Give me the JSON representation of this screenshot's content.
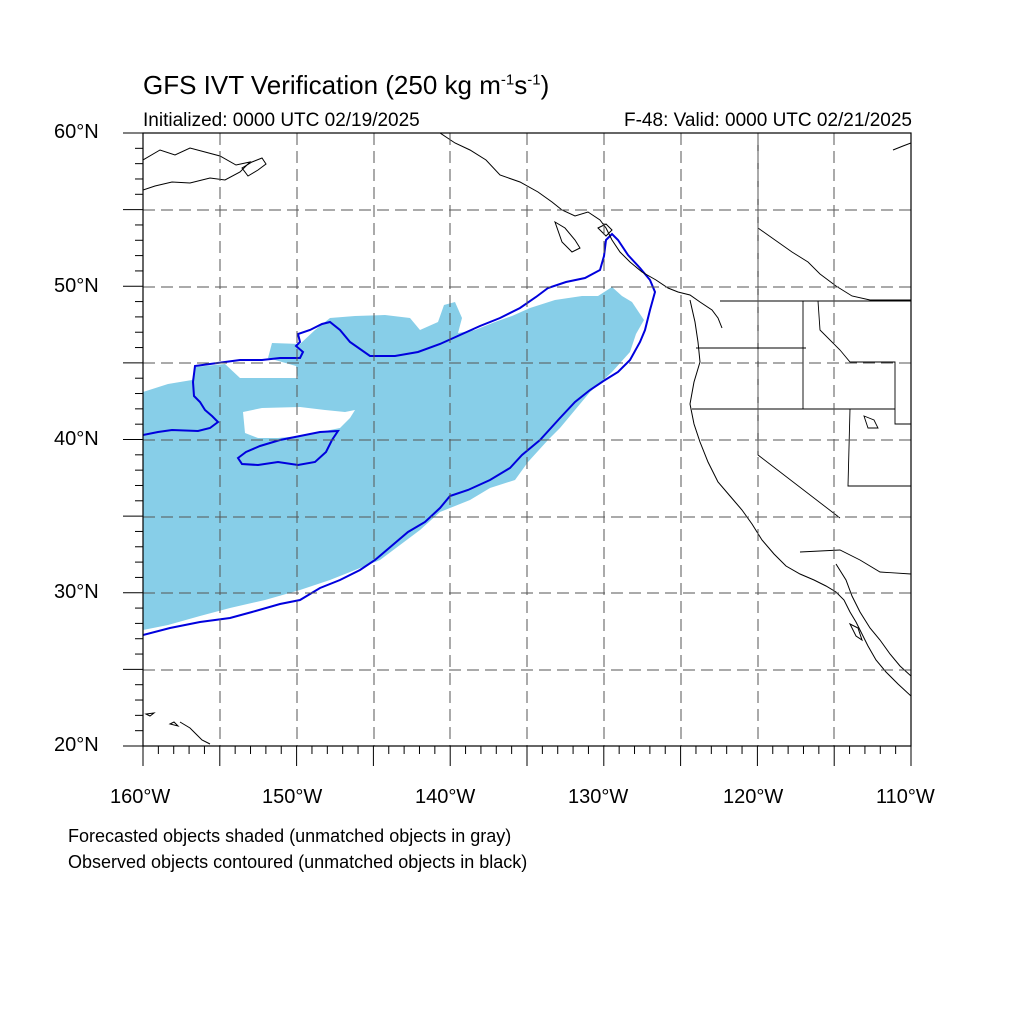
{
  "header": {
    "title_main": "GFS IVT Verification (250 kg m",
    "title_exp1": "-1",
    "title_mid": "s",
    "title_exp2": "-1",
    "title_end": ")",
    "initialized": "Initialized: 0000 UTC 02/19/2025",
    "valid": "F-48: Valid: 0000 UTC 02/21/2025"
  },
  "axes": {
    "lat_labels": [
      "60°N",
      "50°N",
      "40°N",
      "30°N",
      "20°N"
    ],
    "lon_labels": [
      "160°W",
      "150°W",
      "140°W",
      "130°W",
      "120°W",
      "110°W"
    ],
    "lat_range": [
      20,
      60
    ],
    "lon_range": [
      -160,
      -110
    ]
  },
  "legend": {
    "line1": "Forecasted objects shaded (unmatched objects in gray)",
    "line2": "Observed objects contoured (unmatched objects in black)"
  },
  "colors": {
    "forecast_fill": "#87CEE8",
    "observed_contour": "#0000DD",
    "coastline": "#000000"
  }
}
